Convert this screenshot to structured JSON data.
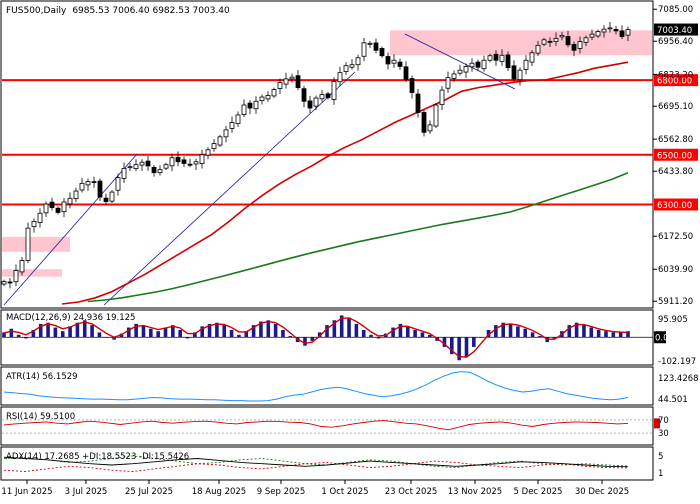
{
  "header": {
    "symbol": "FUS500",
    "timeframe": "Daily",
    "ohlc": "6985.53 7006.40 6982.53 7003.40"
  },
  "colors": {
    "up_candle": "#000000",
    "down_candle": "#000000",
    "support_line": "#ff0000",
    "ma_short": "#d40000",
    "ma_long": "#1a7a1a",
    "trend_line": "#1a1aa0",
    "zone_fill": "#ffc0cb",
    "macd_hist": "#1a1a8c",
    "macd_signal": "#d40000",
    "atr_line": "#1e90ff",
    "rsi_line": "#d40000",
    "adx_line": "#000000",
    "di_plus": "#1a7a1a",
    "di_minus": "#d40000"
  },
  "chart_data": [
    {
      "type": "candlestick",
      "panel": "price",
      "x": [
        "11 Jun 2025",
        "3 Jul 2025",
        "25 Jul 2025",
        "18 Aug 2025",
        "9 Sep 2025",
        "1 Oct 2025",
        "23 Oct 2025",
        "13 Nov 2025",
        "5 Dec 2025",
        "30 Dec 2025"
      ],
      "y_ticks": [
        "7085.00",
        "6956.40",
        "6823.20",
        "6695.10",
        "6562.80",
        "6433.80",
        "6172.50",
        "6039.90",
        "5911.20"
      ],
      "ylim": [
        5900,
        7090
      ],
      "current_price": "7003.40",
      "horizontal_levels": [
        {
          "label": "6800.00",
          "value": 6800
        },
        {
          "label": "6500.00",
          "value": 6500
        },
        {
          "label": "6300.00",
          "value": 6300
        }
      ],
      "resistance_zones": [
        {
          "from": 6900,
          "to": 7000
        },
        {
          "from": 6110,
          "to": 6170
        },
        {
          "from": 6010,
          "to": 6040
        }
      ],
      "close_series": [
        5990,
        5985,
        6035,
        6075,
        6205,
        6232,
        6265,
        6302,
        6288,
        6268,
        6310,
        6325,
        6354,
        6385,
        6392,
        6388,
        6330,
        6312,
        6350,
        6408,
        6445,
        6452,
        6460,
        6470,
        6455,
        6428,
        6440,
        6460,
        6488,
        6472,
        6465,
        6460,
        6472,
        6500,
        6520,
        6545,
        6572,
        6600,
        6630,
        6660,
        6700,
        6688,
        6715,
        6732,
        6738,
        6762,
        6790,
        6805,
        6812,
        6770,
        6715,
        6688,
        6728,
        6742,
        6730,
        6795,
        6830,
        6858,
        6862,
        6890,
        6950,
        6948,
        6920,
        6898,
        6865,
        6880,
        6855,
        6802,
        6750,
        6670,
        6590,
        6620,
        6700,
        6760,
        6810,
        6825,
        6840,
        6855,
        6868,
        6852,
        6880,
        6898,
        6880,
        6900,
        6850,
        6805,
        6840,
        6880,
        6910,
        6940,
        6962,
        6955,
        6968,
        6980,
        6942,
        6920,
        6955,
        6970,
        6985,
        6995,
        7005,
        7010,
        6998,
        6975,
        7003.4
      ]
    },
    {
      "type": "line",
      "panel": "price",
      "name": "",
      "values": [
        5900,
        5908,
        5925,
        5950,
        5985,
        6020,
        6060,
        6100,
        6140,
        6180,
        6230,
        6285,
        6335,
        6380,
        6420,
        6455,
        6495,
        6530,
        6560,
        6595,
        6630,
        6660,
        6690,
        6720,
        6755,
        6770,
        6780,
        6790,
        6798,
        6800,
        6815,
        6830,
        6848,
        6860,
        6872
      ],
      "color_ref": "ma_short"
    },
    {
      "type": "line",
      "panel": "price",
      "name": "",
      "values": [
        5910,
        5916,
        5925,
        5936,
        5948,
        5962,
        5978,
        5995,
        6012,
        6030,
        6048,
        6066,
        6084,
        6102,
        6118,
        6134,
        6150,
        6164,
        6178,
        6192,
        6206,
        6220,
        6232,
        6244,
        6256,
        6270,
        6290,
        6312,
        6334,
        6356,
        6378,
        6400,
        6428
      ],
      "color_ref": "ma_long"
    },
    {
      "type": "bar",
      "panel": "MACD",
      "label": "MACD(12,26,9) 24.936 19.125",
      "y_ticks": [
        "95.905",
        "0.00",
        "-102.197"
      ],
      "ylim": [
        -102.197,
        95.905
      ],
      "values": [
        20,
        35,
        10,
        -5,
        30,
        55,
        60,
        40,
        25,
        45,
        60,
        70,
        50,
        20,
        0,
        -10,
        15,
        40,
        55,
        50,
        35,
        25,
        40,
        50,
        30,
        -5,
        20,
        45,
        55,
        60,
        50,
        30,
        10,
        25,
        50,
        65,
        70,
        55,
        30,
        5,
        -20,
        -35,
        -15,
        20,
        50,
        70,
        90,
        80,
        55,
        30,
        10,
        -5,
        15,
        40,
        55,
        45,
        30,
        20,
        10,
        -15,
        -40,
        -70,
        -95,
        -80,
        -40,
        0,
        30,
        50,
        60,
        55,
        45,
        35,
        20,
        5,
        -20,
        -5,
        25,
        50,
        60,
        50,
        40,
        30,
        25,
        20,
        20,
        25
      ],
      "signal": [
        18,
        25,
        20,
        10,
        25,
        45,
        55,
        48,
        35,
        42,
        55,
        63,
        55,
        35,
        15,
        0,
        10,
        30,
        45,
        48,
        40,
        32,
        38,
        45,
        38,
        15,
        15,
        35,
        48,
        55,
        52,
        40,
        22,
        22,
        40,
        58,
        65,
        60,
        42,
        18,
        -8,
        -25,
        -20,
        5,
        35,
        58,
        78,
        80,
        65,
        45,
        22,
        5,
        8,
        28,
        45,
        45,
        35,
        25,
        15,
        -5,
        -28,
        -55,
        -80,
        -82,
        -60,
        -25,
        10,
        35,
        52,
        55,
        50,
        40,
        28,
        12,
        -8,
        -8,
        12,
        38,
        52,
        52,
        44,
        35,
        28,
        23,
        21,
        19.125
      ]
    },
    {
      "type": "line",
      "panel": "ATR",
      "label": "ATR(14) 56.1529",
      "y_ticks": [
        "123.4268",
        "44.501"
      ],
      "ylim": [
        44.501,
        123.4268
      ],
      "values": [
        70,
        68,
        66,
        64,
        60,
        58,
        56,
        55,
        54,
        53,
        52,
        52,
        51,
        50,
        50,
        52,
        54,
        56,
        55,
        53,
        52,
        52,
        51,
        50,
        50,
        49,
        48,
        48,
        47,
        47,
        48,
        52,
        58,
        62,
        64,
        70,
        76,
        80,
        82,
        78,
        72,
        66,
        62,
        58,
        60,
        64,
        70,
        78,
        88,
        100,
        110,
        118,
        122,
        120,
        110,
        98,
        88,
        80,
        74,
        70,
        72,
        76,
        78,
        72,
        66,
        62,
        58,
        54,
        52,
        50,
        52,
        56.15
      ]
    },
    {
      "type": "line",
      "panel": "RSI",
      "label": "RSI(14) 59.5100",
      "y_ticks": [
        "70",
        "30"
      ],
      "ylim": [
        0,
        100
      ],
      "values": [
        55,
        58,
        60,
        62,
        64,
        60,
        58,
        62,
        66,
        64,
        60,
        56,
        60,
        64,
        66,
        62,
        60,
        63,
        65,
        66,
        64,
        60,
        58,
        62,
        64,
        66,
        65,
        63,
        62,
        58,
        50,
        48,
        52,
        58,
        62,
        66,
        68,
        64,
        60,
        58,
        52,
        45,
        40,
        48,
        56,
        60,
        62,
        64,
        60,
        54,
        50,
        56,
        60,
        62,
        64,
        63,
        62,
        60,
        58,
        59.51
      ]
    },
    {
      "type": "line",
      "panel": "ADX",
      "label": "ADX(14) 17.2685 +DI:18.5523 -DI:15.5426",
      "y_ticks": [
        "5",
        "1"
      ],
      "values": [
        32,
        30,
        28,
        25,
        22,
        20,
        22,
        25,
        28,
        30,
        27,
        24,
        22,
        20,
        18,
        20,
        23,
        26,
        24,
        22,
        20,
        18,
        20,
        22,
        25,
        24,
        22,
        20,
        18,
        17.27
      ],
      "di_plus": [
        30,
        32,
        28,
        24,
        26,
        30,
        34,
        30,
        26,
        22,
        24,
        28,
        30,
        26,
        22,
        20,
        24,
        28,
        26,
        22,
        18,
        16,
        20,
        24,
        26,
        22,
        20,
        22,
        20,
        18.55
      ],
      "di_minus": [
        12,
        10,
        14,
        18,
        16,
        12,
        10,
        14,
        18,
        22,
        20,
        16,
        14,
        18,
        22,
        24,
        20,
        16,
        18,
        22,
        26,
        24,
        20,
        18,
        16,
        20,
        22,
        18,
        16,
        15.54
      ]
    }
  ]
}
